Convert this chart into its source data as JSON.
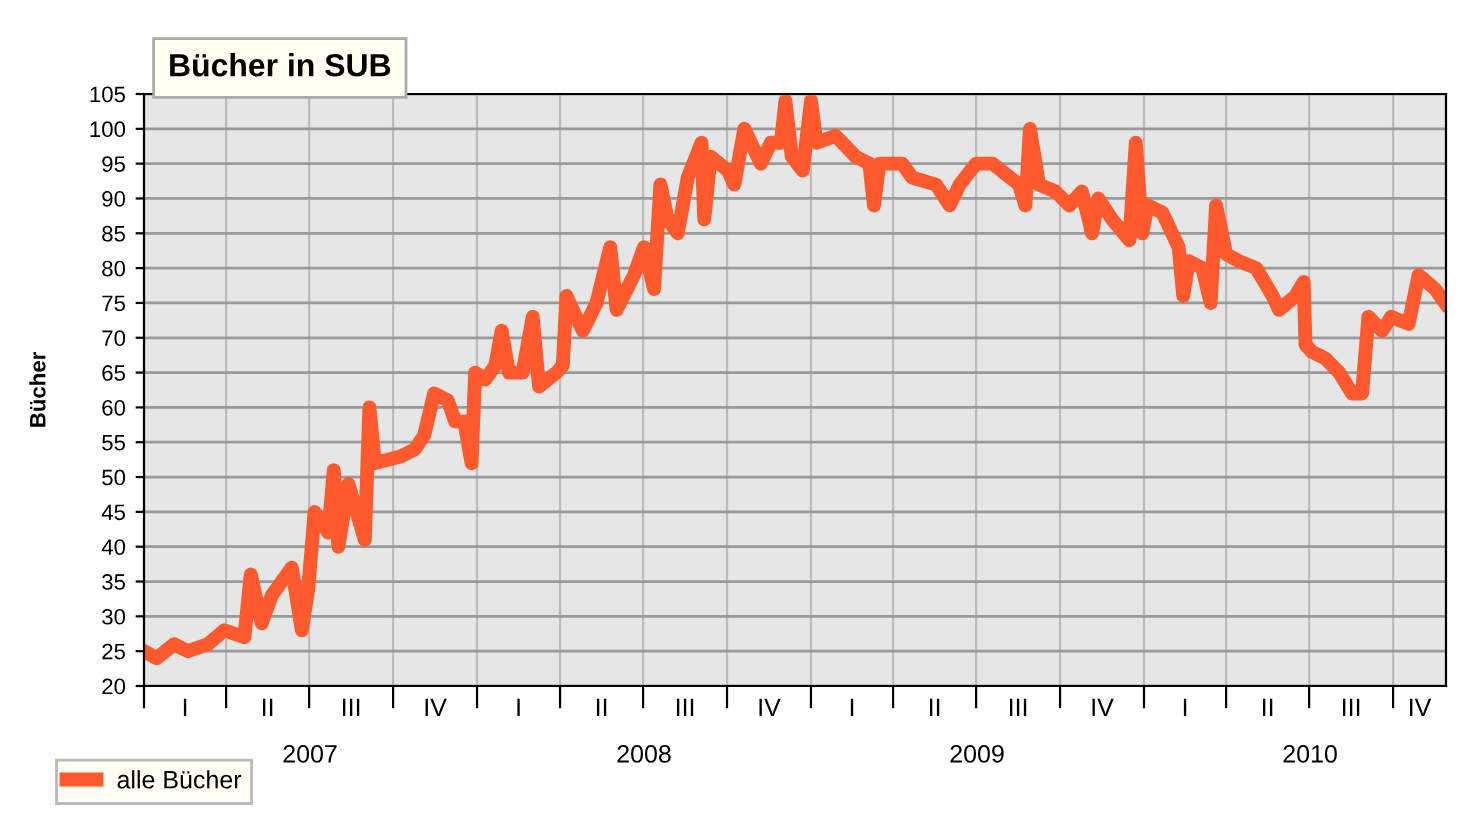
{
  "chart_data": {
    "type": "line",
    "title": "Bücher in SUB",
    "ylabel": "Bücher",
    "x": [
      "2007-01-01",
      "2007-01-15",
      "2007-02-03",
      "2007-02-18",
      "2007-03-12",
      "2007-03-30",
      "2007-04-21",
      "2007-04-28",
      "2007-05-10",
      "2007-05-21",
      "2007-06-01",
      "2007-06-12",
      "2007-06-23",
      "2007-06-30",
      "2007-07-07",
      "2007-07-22",
      "2007-07-28",
      "2007-08-02",
      "2007-08-13",
      "2007-08-31",
      "2007-09-05",
      "2007-09-11",
      "2007-10-10",
      "2007-10-25",
      "2007-11-04",
      "2007-11-15",
      "2007-11-30",
      "2007-12-08",
      "2007-12-18",
      "2007-12-26",
      "2007-12-30",
      "2008-01-10",
      "2008-01-21",
      "2008-01-28",
      "2008-02-05",
      "2008-02-20",
      "2008-03-02",
      "2008-03-09",
      "2008-03-28",
      "2008-04-04",
      "2008-04-08",
      "2008-04-15",
      "2008-04-26",
      "2008-05-11",
      "2008-05-26",
      "2008-06-02",
      "2008-06-21",
      "2008-07-02",
      "2008-07-13",
      "2008-07-20",
      "2008-07-28",
      "2008-08-08",
      "2008-08-19",
      "2008-09-03",
      "2008-09-06",
      "2008-09-13",
      "2008-10-02",
      "2008-10-09",
      "2008-10-20",
      "2008-11-07",
      "2008-11-18",
      "2008-11-29",
      "2008-12-04",
      "2008-12-11",
      "2008-12-23",
      "2009-01-01",
      "2009-01-07",
      "2009-01-28",
      "2009-02-19",
      "2009-03-06",
      "2009-03-11",
      "2009-03-17",
      "2009-04-11",
      "2009-04-22",
      "2009-05-18",
      "2009-06-02",
      "2009-06-13",
      "2009-07-01",
      "2009-07-19",
      "2009-08-17",
      "2009-08-24",
      "2009-08-29",
      "2009-09-08",
      "2009-09-26",
      "2009-10-11",
      "2009-10-25",
      "2009-11-05",
      "2009-11-12",
      "2009-11-27",
      "2009-12-16",
      "2009-12-23",
      "2009-12-30",
      "2010-01-05",
      "2010-01-21",
      "2010-02-08",
      "2010-02-13",
      "2010-02-19",
      "2010-03-06",
      "2010-03-15",
      "2010-03-21",
      "2010-04-01",
      "2010-04-15",
      "2010-05-04",
      "2010-05-22",
      "2010-05-29",
      "2010-06-16",
      "2010-06-25",
      "2010-06-27",
      "2010-07-04",
      "2010-07-19",
      "2010-08-03",
      "2010-08-17",
      "2010-08-28",
      "2010-09-04",
      "2010-09-19",
      "2010-09-29",
      "2010-10-18",
      "2010-10-29",
      "2010-11-16",
      "2010-11-27"
    ],
    "series": [
      {
        "name": "alle Bücher",
        "color": "#ff5a2d",
        "values": [
          25,
          24,
          26,
          25,
          26,
          28,
          27,
          36,
          29,
          33,
          35,
          37,
          28,
          34,
          45,
          42,
          51,
          40,
          49,
          41,
          60,
          52,
          53,
          54,
          56,
          62,
          61,
          58,
          58,
          52,
          65,
          64,
          66,
          71,
          65,
          65,
          73,
          63,
          65,
          66,
          76,
          74,
          71,
          75,
          83,
          74,
          79,
          83,
          77,
          92,
          87,
          85,
          93,
          98,
          87,
          96,
          94,
          92,
          100,
          95,
          98,
          98,
          104,
          96,
          94,
          104,
          98,
          99,
          96,
          95,
          89,
          95,
          95,
          93,
          92,
          89,
          92,
          95,
          95,
          92,
          89,
          100,
          92,
          91,
          89,
          91,
          85,
          90,
          87,
          84,
          98,
          85,
          89,
          88,
          83,
          76,
          81,
          80,
          75,
          89,
          82,
          81,
          80,
          76,
          74,
          76,
          78,
          69,
          68,
          67,
          65,
          62,
          62,
          73,
          71,
          73,
          72,
          79,
          77,
          75
        ]
      }
    ],
    "xlim": [
      "2007-01-01",
      "2010-11-28"
    ],
    "xticks": [
      {
        "value": "2007-01-01",
        "label": null
      },
      {
        "value": "2007-04-01",
        "label": null
      },
      {
        "value": "2007-07-01",
        "label": null
      },
      {
        "value": "2007-10-01",
        "label": null
      },
      {
        "value": "2008-01-01",
        "label": null
      },
      {
        "value": "2008-04-01",
        "label": null
      },
      {
        "value": "2008-07-01",
        "label": null
      },
      {
        "value": "2008-10-01",
        "label": null
      },
      {
        "value": "2009-01-01",
        "label": null
      },
      {
        "value": "2009-04-01",
        "label": null
      },
      {
        "value": "2009-07-01",
        "label": null
      },
      {
        "value": "2009-10-01",
        "label": null
      },
      {
        "value": "2010-01-01",
        "label": null
      },
      {
        "value": "2010-04-01",
        "label": null
      },
      {
        "value": "2010-07-01",
        "label": null
      },
      {
        "value": "2010-10-01",
        "label": null
      },
      {
        "value": "2007-07-02",
        "label": "2007"
      },
      {
        "value": "2008-07-02",
        "label": "2008"
      },
      {
        "value": "2009-07-02",
        "label": "2009"
      },
      {
        "value": "2010-07-02",
        "label": "2010"
      }
    ],
    "annotations": [
      "I",
      "II",
      "III",
      "IV",
      "I",
      "II",
      "III",
      "IV",
      "I",
      "II",
      "III",
      "IV",
      "I",
      "II",
      "III",
      "IV"
    ],
    "ylim": [
      20,
      105
    ],
    "yticks": [
      20,
      25,
      30,
      35,
      40,
      45,
      50,
      55,
      60,
      65,
      70,
      75,
      80,
      85,
      90,
      95,
      100,
      105
    ],
    "grid": true,
    "legend": "bottom",
    "marker": "none",
    "line_style": "solid"
  }
}
